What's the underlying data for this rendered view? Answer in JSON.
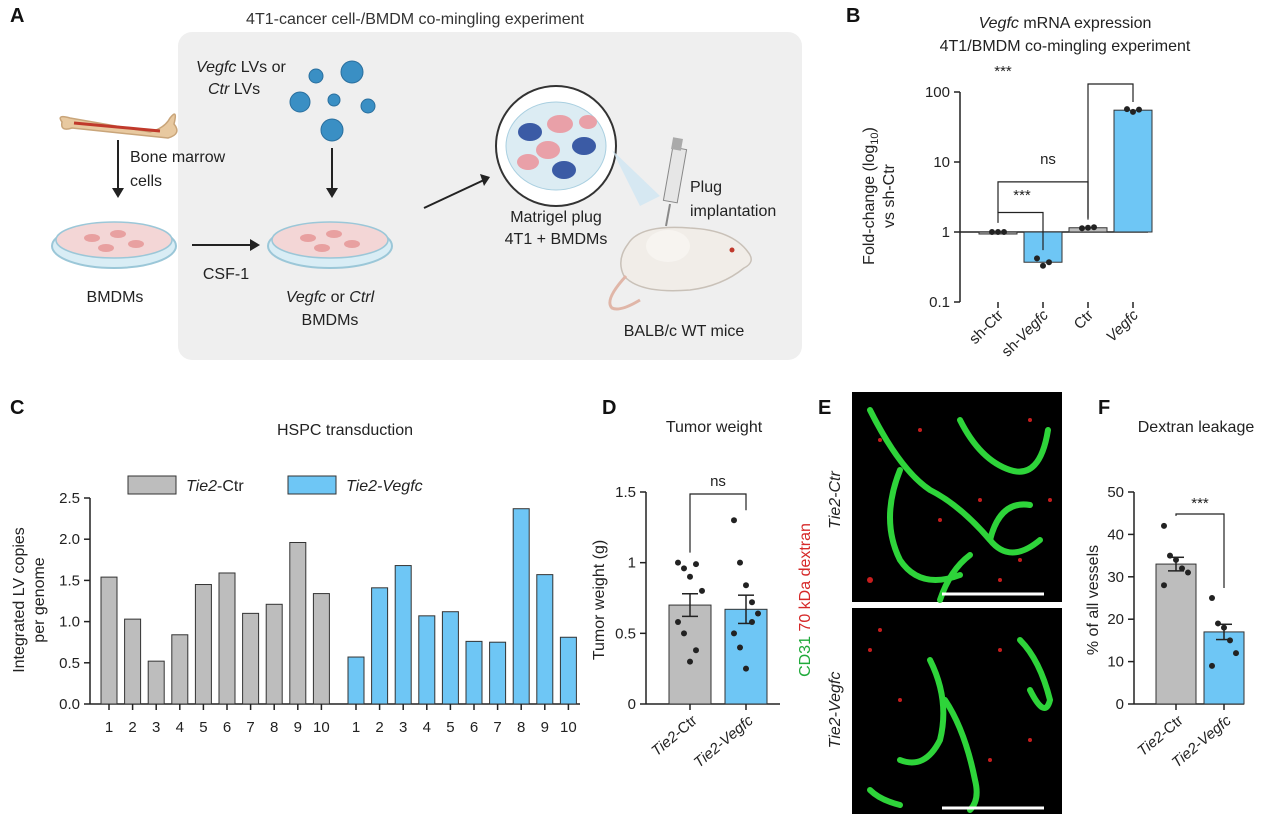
{
  "panels": {
    "a": {
      "letter": "A",
      "title": "4T1-cancer cell-/BMDM co-mingling experiment",
      "lv_label_1_italic": "Vegfc",
      "lv_label_1_rest": " LVs or",
      "lv_label_2_italic": "Ctr",
      "lv_label_2_rest": " LVs",
      "bone_marrow_1": "Bone marrow",
      "bone_marrow_2": "cells",
      "bmdms": "BMDMs",
      "csf1": "CSF-1",
      "vegfc_or_ctrl_italic_1": "Vegfc",
      "vegfc_or_ctrl_mid": " or ",
      "vegfc_or_ctrl_italic_2": "Ctrl",
      "bmdms_2": "BMDMs",
      "matrigel_1": "Matrigel plug",
      "matrigel_2": "4T1 + BMDMs",
      "plug_1": "Plug",
      "plug_2": "implantation",
      "mice": "BALB/c WT mice"
    },
    "b": {
      "letter": "B",
      "title_italic": "Vegfc",
      "title_rest": " mRNA expression",
      "subtitle": "4T1/BMDM co-mingling experiment",
      "ylabel_1": "Fold-change (log",
      "ylabel_sub": "10",
      "ylabel_1_end": ")",
      "ylabel_2": "vs sh-Ctr",
      "sig_1": "***",
      "sig_2": "ns",
      "sig_3": "***"
    },
    "c": {
      "letter": "C",
      "title": "HSPC transduction",
      "ylabel_1": "Integrated LV copies",
      "ylabel_2": "per genome",
      "legend_1_italic": "Tie2",
      "legend_1_rest": "-Ctr",
      "legend_2_italic": "Tie2-Vegfc"
    },
    "d": {
      "letter": "D",
      "title": "Tumor weight",
      "ylabel": "Tumor weight (g)",
      "sig": "ns"
    },
    "e": {
      "letter": "E",
      "ylabel_green": "CD31",
      "ylabel_red": " 70 kDa dextran",
      "label_top": "Tie2-Ctr",
      "label_bottom": "Tie2-Vegfc"
    },
    "f": {
      "letter": "F",
      "title": "Dextran leakage",
      "ylabel": "% of all vessels",
      "sig": "***"
    }
  },
  "chart_data": [
    {
      "id": "B",
      "type": "bar",
      "scale": "log",
      "categories": [
        "sh-Ctr",
        "sh-Vegfc",
        "Ctr",
        "Vegfc"
      ],
      "values": [
        1,
        0.37,
        1.15,
        55
      ],
      "points": [
        [
          1,
          1,
          1
        ],
        [
          0.42,
          0.33,
          0.37
        ],
        [
          1.13,
          1.15,
          1.17
        ],
        [
          57,
          52,
          56
        ]
      ],
      "colors": [
        "#bdbdbd",
        "#6ec6f5",
        "#bdbdbd",
        "#6ec6f5"
      ],
      "yticks": [
        "0.1",
        "1",
        "10",
        "100"
      ],
      "ylim": [
        0.1,
        100
      ]
    },
    {
      "id": "C",
      "type": "bar",
      "groups": [
        {
          "name": "Tie2-Ctr",
          "color": "#bdbdbd",
          "categories": [
            "1",
            "2",
            "3",
            "4",
            "5",
            "6",
            "7",
            "8",
            "9",
            "10"
          ],
          "values": [
            1.54,
            1.03,
            0.52,
            0.84,
            1.45,
            1.59,
            1.1,
            1.21,
            1.96,
            1.34
          ]
        },
        {
          "name": "Tie2-Vegfc",
          "color": "#6ec6f5",
          "categories": [
            "1",
            "2",
            "3",
            "4",
            "5",
            "6",
            "7",
            "8",
            "9",
            "10"
          ],
          "values": [
            0.57,
            1.41,
            1.68,
            1.07,
            1.12,
            0.76,
            0.75,
            2.37,
            1.57,
            0.81
          ]
        }
      ],
      "yticks": [
        "0.0",
        "0.5",
        "1.0",
        "1.5",
        "2.0",
        "2.5"
      ],
      "ylim": [
        0,
        2.5
      ]
    },
    {
      "id": "D",
      "type": "bar",
      "categories": [
        "Tie2-Ctr",
        "Tie2-Vegfc"
      ],
      "values": [
        0.7,
        0.67
      ],
      "errors": [
        0.08,
        0.1
      ],
      "points": [
        [
          1.0,
          0.96,
          0.9,
          0.99,
          0.8,
          0.58,
          0.5,
          0.3,
          0.38
        ],
        [
          1.3,
          1.0,
          0.84,
          0.72,
          0.64,
          0.5,
          0.4,
          0.25,
          0.58
        ]
      ],
      "colors": [
        "#bdbdbd",
        "#6ec6f5"
      ],
      "yticks": [
        "0",
        "0.5",
        "1",
        "1.5"
      ],
      "ylim": [
        0,
        1.5
      ]
    },
    {
      "id": "F",
      "type": "bar",
      "categories": [
        "Tie2-Ctr",
        "Tie2-Vegfc"
      ],
      "values": [
        33,
        17
      ],
      "errors": [
        1.6,
        1.8
      ],
      "points": [
        [
          42,
          35,
          34,
          32,
          31,
          28
        ],
        [
          25,
          19,
          18,
          15,
          12,
          9
        ]
      ],
      "colors": [
        "#bdbdbd",
        "#6ec6f5"
      ],
      "yticks": [
        "0",
        "10",
        "20",
        "30",
        "40",
        "50"
      ],
      "ylim": [
        0,
        50
      ]
    }
  ]
}
